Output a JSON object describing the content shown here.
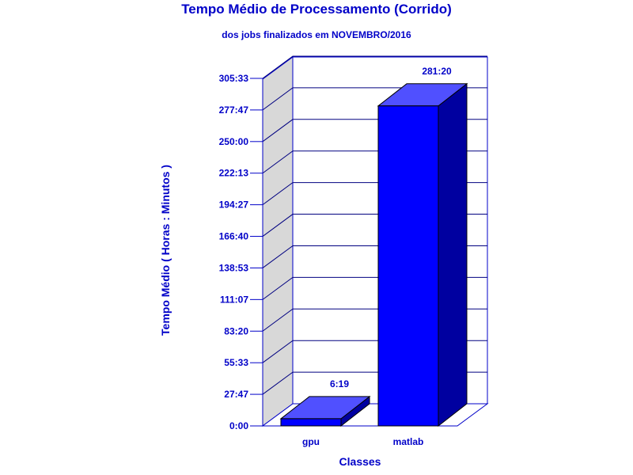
{
  "chart_data": {
    "type": "bar",
    "title": "Tempo Médio de Processamento (Corrido)",
    "subtitle": "dos jobs finalizados em NOVEMBRO/2016",
    "xlabel": "Classes",
    "ylabel": "Tempo Médio ( Horas : Minutos )",
    "categories": [
      "gpu",
      "matlab"
    ],
    "values": [
      6.3167,
      281.3333
    ],
    "value_labels": [
      "6:19",
      "281:20"
    ],
    "y_ticks": [
      0,
      27.7833,
      55.55,
      83.3333,
      111.1167,
      138.8833,
      166.6667,
      194.45,
      222.2167,
      250.0,
      277.7833,
      305.55
    ],
    "y_tick_labels": [
      "0:00",
      "27:47",
      "55:33",
      "83:20",
      "111:07",
      "138:53",
      "166:40",
      "194:27",
      "222:13",
      "250:00",
      "277:47",
      "305:33"
    ],
    "ylim": [
      0,
      305.55
    ],
    "grid": true,
    "legend": "none",
    "colors": {
      "text": "#0000c8",
      "bar_front": "#0000ff",
      "bar_top": "#5050ff",
      "bar_side": "#0000a0",
      "frame": "#0000c8",
      "wall": "#d8d8d8",
      "grid": "#000080"
    }
  }
}
